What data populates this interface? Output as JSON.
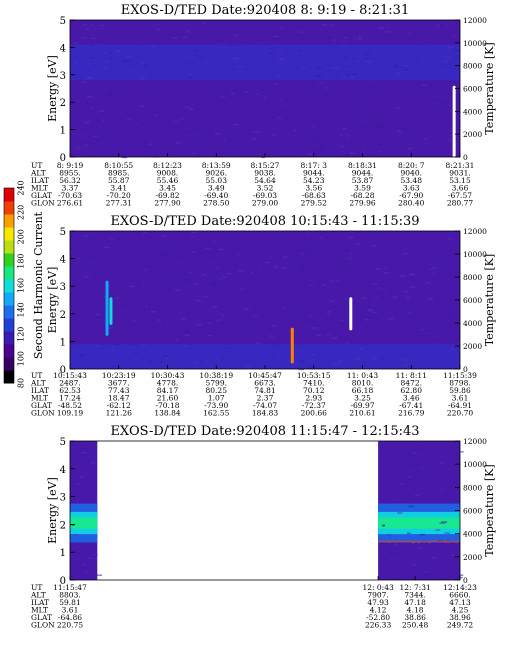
{
  "colorbar": {
    "label": "Second Harmonic Current",
    "ticks": [
      80,
      100,
      120,
      140,
      160,
      180,
      200,
      220,
      240
    ],
    "colors": [
      "#000000",
      "#3a0066",
      "#4a0090",
      "#3a1cb4",
      "#2040d8",
      "#1e6ef0",
      "#12aaf8",
      "#10dcd8",
      "#18e880",
      "#30d020",
      "#b8e010",
      "#f8e800",
      "#f8a000",
      "#f04000",
      "#e00000"
    ]
  },
  "chart_data": [
    {
      "type": "heatmap",
      "title": "EXOS-D/TED   Date:920408   8: 9:19 - 8:21:31",
      "ylabel": "Energy [eV]",
      "ylabel_right": "Temperature [K]",
      "ylim": [
        0,
        5
      ],
      "yticks": [
        "0",
        "1",
        "2",
        "3",
        "4",
        "5"
      ],
      "ylim_right": [
        0,
        12000
      ],
      "yticks_right": [
        "0",
        "2000",
        "4000",
        "6000",
        "8000",
        "10000",
        "12000"
      ],
      "data_start": 0.0,
      "data_end": 1.0,
      "band": [
        {
          "from": 0.0,
          "to": 5.0,
          "level": 1
        },
        {
          "from": 2.8,
          "to": 4.1,
          "level": 2
        }
      ],
      "spikes": [
        {
          "x": 0.985,
          "from": 0.0,
          "to": 2.6,
          "color": "#ffffff"
        }
      ],
      "orbit_labels": [
        "UT",
        "ALT",
        "ILAT",
        "MLT",
        "GLAT",
        "GLON"
      ],
      "orbit": [
        [
          "8: 9:19",
          "8955.",
          "56.32",
          "3.37",
          "-70.63",
          "276.61"
        ],
        [
          "8:10:55",
          "8985.",
          "55.87",
          "3.41",
          "-70.20",
          "277.31"
        ],
        [
          "8:12:23",
          "9008.",
          "55.46",
          "3.45",
          "-69.82",
          "277.90"
        ],
        [
          "8:13:59",
          "9026.",
          "55.03",
          "3.49",
          "-69.40",
          "278.50"
        ],
        [
          "8:15:27",
          "9038.",
          "54.64",
          "3.52",
          "-69.03",
          "279.00"
        ],
        [
          "8:17: 3",
          "9044.",
          "54.23",
          "3.56",
          "-68.63",
          "279.52"
        ],
        [
          "8:18:31",
          "9044.",
          "53.87",
          "3.59",
          "-68.28",
          "279.96"
        ],
        [
          "8:20: 7",
          "9040.",
          "53.48",
          "3.63",
          "-67.90",
          "280.40"
        ],
        [
          "8:21:31",
          "9031.",
          "53.15",
          "3.66",
          "-67.57",
          "280.77"
        ]
      ]
    },
    {
      "type": "heatmap",
      "title": "EXOS-D/TED   Date:920408   10:15:43 - 11:15:39",
      "ylabel": "Energy [eV]",
      "ylabel_right": "Temperature [K]",
      "ylim": [
        0,
        5
      ],
      "yticks": [
        "0",
        "1",
        "2",
        "3",
        "4",
        "5"
      ],
      "ylim_right": [
        0,
        12000
      ],
      "yticks_right": [
        "0",
        "2000",
        "4000",
        "6000",
        "8000",
        "10000",
        "12000"
      ],
      "data_start": 0.0,
      "data_end": 1.0,
      "band": [
        {
          "from": 0.0,
          "to": 5.0,
          "level": 1
        },
        {
          "from": 0.0,
          "to": 0.9,
          "level": 2
        }
      ],
      "spikes": [
        {
          "x": 0.095,
          "from": 1.2,
          "to": 3.2,
          "color": "#12aaf8"
        },
        {
          "x": 0.105,
          "from": 1.6,
          "to": 2.6,
          "color": "#10dcd8"
        },
        {
          "x": 0.57,
          "from": 0.2,
          "to": 1.5,
          "color": "#ff8000"
        },
        {
          "x": 0.72,
          "from": 1.4,
          "to": 2.6,
          "color": "#ffffff"
        }
      ],
      "orbit_labels": [
        "UT",
        "ALT",
        "ILAT",
        "MLT",
        "GLAT",
        "GLON"
      ],
      "orbit": [
        [
          "10:15:43",
          "2487.",
          "62.53",
          "17.24",
          "-48.52",
          "109.19"
        ],
        [
          "10:23:19",
          "3677.",
          "77.43",
          "18.47",
          "-62.12",
          "121.26"
        ],
        [
          "10:30:43",
          "4778.",
          "84.17",
          "21.60",
          "-70.18",
          "138.84"
        ],
        [
          "10:38:19",
          "5799.",
          "80.25",
          "1.07",
          "-73.90",
          "162.55"
        ],
        [
          "10:45:47",
          "6673.",
          "74.81",
          "2.37",
          "-74.07",
          "184.83"
        ],
        [
          "10:53:15",
          "7410.",
          "70.12",
          "2.93",
          "-72.37",
          "200.66"
        ],
        [
          "11: 0:43",
          "8010.",
          "66.18",
          "3.25",
          "-69.97",
          "210.61"
        ],
        [
          "11: 8:11",
          "8472.",
          "62.80",
          "3.46",
          "-67.41",
          "216.79"
        ],
        [
          "11:15:39",
          "8798.",
          "59.86",
          "3.61",
          "-64.91",
          "220.70"
        ]
      ]
    },
    {
      "type": "heatmap",
      "title": "EXOS-D/TED   Date:920408   11:15:47 - 12:15:43",
      "ylabel": "Energy [eV]",
      "ylabel_right": "Temperature [K]",
      "ylim": [
        0,
        5
      ],
      "yticks": [
        "0",
        "1",
        "2",
        "3",
        "4",
        "5"
      ],
      "ylim_right": [
        0,
        12000
      ],
      "yticks_right": [
        "0",
        "2000",
        "4000",
        "6000",
        "8000",
        "10000",
        "12000"
      ],
      "data_segments": [
        [
          0.0,
          0.07
        ],
        [
          0.79,
          1.0
        ]
      ],
      "band": [
        {
          "from": 0.0,
          "to": 5.0,
          "level": 1
        },
        {
          "from": 1.35,
          "to": 2.75,
          "level": 3
        },
        {
          "from": 1.65,
          "to": 2.45,
          "level": 4
        },
        {
          "from": 1.85,
          "to": 2.25,
          "level": 5
        }
      ],
      "temperature_line": {
        "y": 3300,
        "from": 0.79,
        "to": 1.0,
        "color": "#e04020"
      },
      "orbit_labels": [
        "UT",
        "ALT",
        "ILAT",
        "MLT",
        "GLAT",
        "GLON"
      ],
      "orbit": [
        [
          "11:15:47",
          "8803.",
          "59.81",
          "3.61",
          "-64.86",
          "220.75"
        ],
        [
          "12: 0:43",
          "7907.",
          "47.93",
          "4.12",
          "-52.80",
          "226.33"
        ],
        [
          "12: 7:31",
          "7344.",
          "47.18",
          "4.18",
          "38.86",
          "250.48"
        ],
        [
          "12:14:23",
          "6660.",
          "47.13",
          "4.25",
          "38.96",
          "249.72"
        ]
      ],
      "orbit_positions": [
        0.0,
        0.79,
        0.885,
        1.0
      ]
    }
  ]
}
